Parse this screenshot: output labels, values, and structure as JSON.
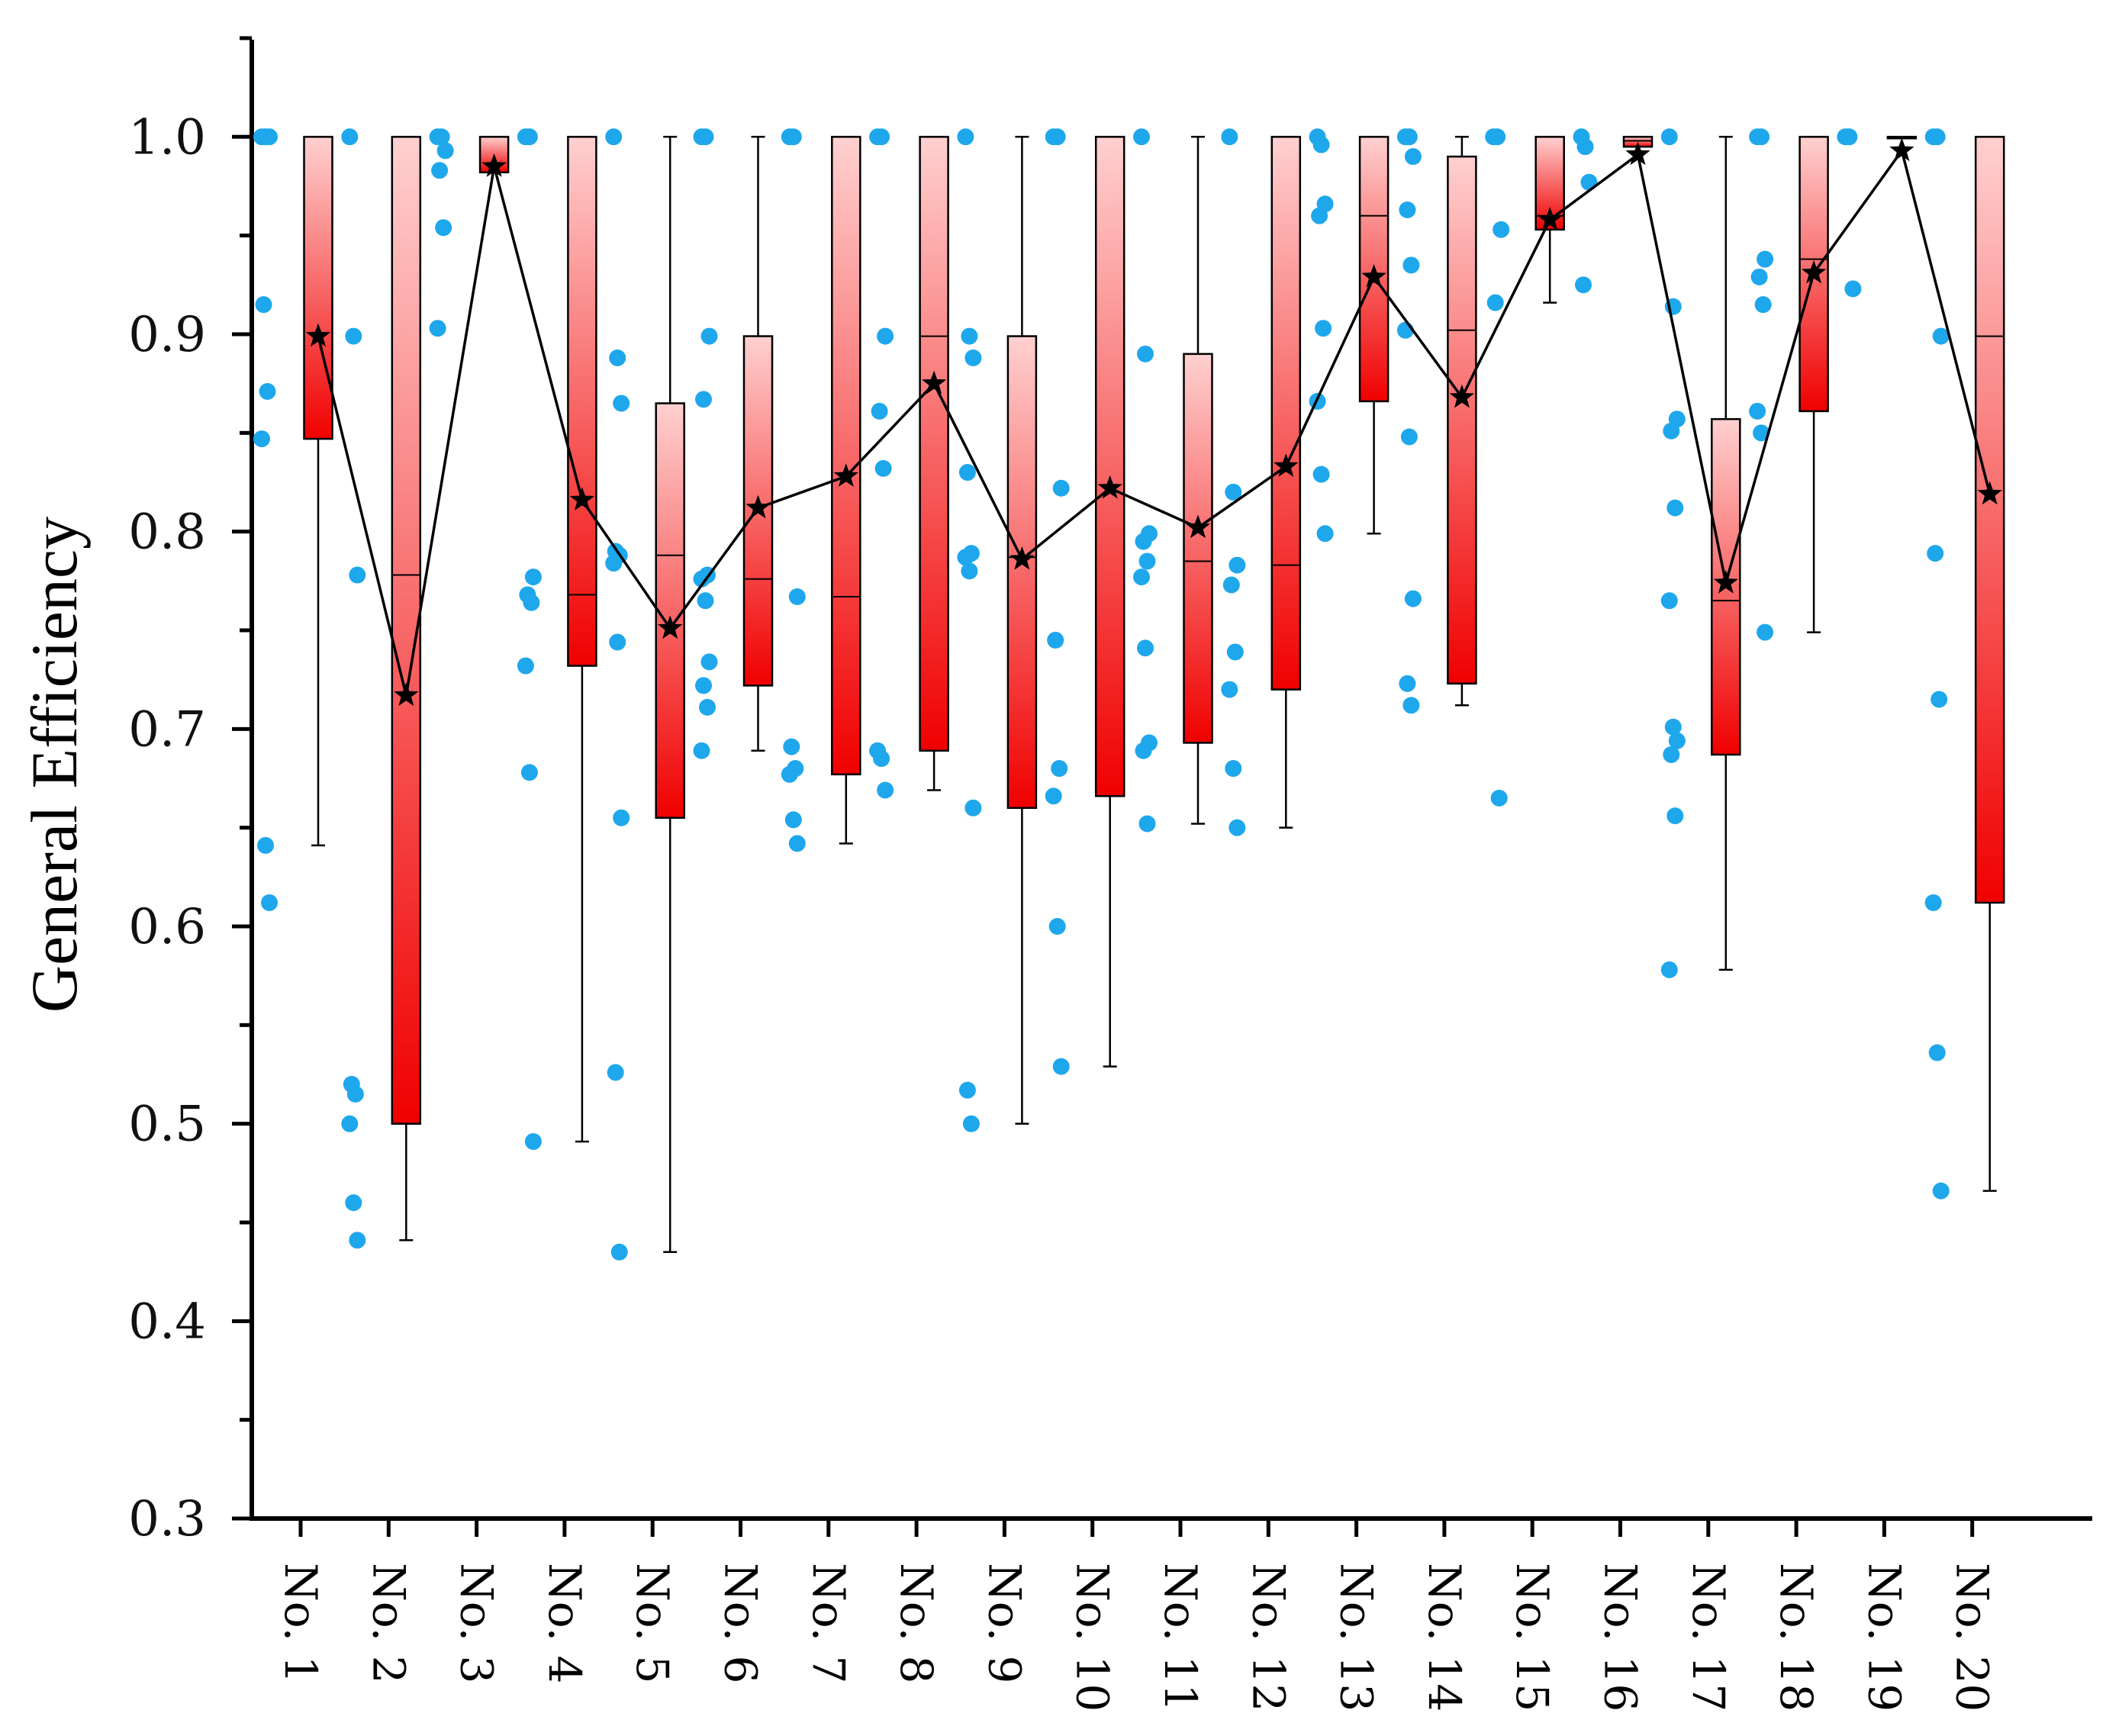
{
  "chart_data": {
    "type": "box",
    "title": "",
    "ylabel": "General Efficiency",
    "xlabel": "",
    "ylim": [
      0.3,
      1.05
    ],
    "yticks": [
      "0.3",
      "0.4",
      "0.5",
      "0.6",
      "0.7",
      "0.8",
      "0.9",
      "1.0"
    ],
    "categories": [
      "No. 1",
      "No. 2",
      "No. 3",
      "No. 4",
      "No. 5",
      "No. 6",
      "No. 7",
      "No. 8",
      "No. 9",
      "No. 10",
      "No. 11",
      "No. 12",
      "No. 13",
      "No. 14",
      "No. 15",
      "No. 16",
      "No. 17",
      "No. 18",
      "No. 19",
      "No. 20"
    ],
    "colors": {
      "box_top": "#ffd0d0",
      "box_bottom": "#f00000",
      "points": "#1fa7ec",
      "mean_line": "#000000"
    },
    "boxes": [
      {
        "q1": 0.847,
        "median": 1.0,
        "q3": 1.0,
        "whisker_low": 0.641,
        "whisker_high": 1.0,
        "mean": 0.899,
        "points": [
          1.0,
          1.0,
          1.0,
          0.915,
          0.871,
          0.847,
          0.641,
          0.612
        ]
      },
      {
        "q1": 0.5,
        "median": 0.778,
        "q3": 1.0,
        "whisker_low": 0.441,
        "whisker_high": 1.0,
        "mean": 0.717,
        "points": [
          1.0,
          0.899,
          0.778,
          0.52,
          0.515,
          0.5,
          0.46,
          0.441
        ]
      },
      {
        "q1": 0.982,
        "median": 1.0,
        "q3": 1.0,
        "whisker_low": 0.982,
        "whisker_high": 1.0,
        "mean": 0.985,
        "points": [
          1.0,
          1.0,
          0.993,
          0.983,
          0.954,
          0.903
        ]
      },
      {
        "q1": 0.732,
        "median": 0.768,
        "q3": 1.0,
        "whisker_low": 0.491,
        "whisker_high": 1.0,
        "mean": 0.816,
        "points": [
          1.0,
          1.0,
          0.777,
          0.768,
          0.764,
          0.732,
          0.678,
          0.491
        ]
      },
      {
        "q1": 0.655,
        "median": 0.788,
        "q3": 0.865,
        "whisker_low": 0.435,
        "whisker_high": 1.0,
        "mean": 0.751,
        "points": [
          1.0,
          0.888,
          0.865,
          0.79,
          0.788,
          0.784,
          0.744,
          0.655,
          0.526,
          0.435
        ]
      },
      {
        "q1": 0.722,
        "median": 0.776,
        "q3": 0.899,
        "whisker_low": 0.689,
        "whisker_high": 1.0,
        "mean": 0.812,
        "points": [
          1.0,
          1.0,
          0.899,
          0.867,
          0.778,
          0.776,
          0.765,
          0.734,
          0.722,
          0.711,
          0.689
        ]
      },
      {
        "q1": 0.677,
        "median": 0.767,
        "q3": 1.0,
        "whisker_low": 0.642,
        "whisker_high": 1.0,
        "mean": 0.828,
        "points": [
          1.0,
          1.0,
          0.767,
          0.691,
          0.68,
          0.677,
          0.654,
          0.642
        ]
      },
      {
        "q1": 0.689,
        "median": 0.899,
        "q3": 1.0,
        "whisker_low": 0.669,
        "whisker_high": 1.0,
        "mean": 0.875,
        "points": [
          1.0,
          1.0,
          0.899,
          0.861,
          0.832,
          0.689,
          0.685,
          0.669
        ]
      },
      {
        "q1": 0.66,
        "median": 0.787,
        "q3": 0.899,
        "whisker_low": 0.5,
        "whisker_high": 1.0,
        "mean": 0.786,
        "points": [
          1.0,
          0.899,
          0.888,
          0.83,
          0.789,
          0.787,
          0.78,
          0.66,
          0.517,
          0.5
        ]
      },
      {
        "q1": 0.666,
        "median": 1.0,
        "q3": 1.0,
        "whisker_low": 0.529,
        "whisker_high": 1.0,
        "mean": 0.822,
        "points": [
          1.0,
          1.0,
          0.822,
          0.745,
          0.68,
          0.666,
          0.6,
          0.529
        ]
      },
      {
        "q1": 0.693,
        "median": 0.785,
        "q3": 0.89,
        "whisker_low": 0.652,
        "whisker_high": 1.0,
        "mean": 0.802,
        "points": [
          1.0,
          0.89,
          0.799,
          0.795,
          0.785,
          0.777,
          0.741,
          0.693,
          0.689,
          0.652
        ]
      },
      {
        "q1": 0.72,
        "median": 0.783,
        "q3": 1.0,
        "whisker_low": 0.65,
        "whisker_high": 1.0,
        "mean": 0.833,
        "points": [
          1.0,
          0.82,
          0.783,
          0.773,
          0.739,
          0.72,
          0.68,
          0.65
        ]
      },
      {
        "q1": 0.866,
        "median": 0.96,
        "q3": 1.0,
        "whisker_low": 0.799,
        "whisker_high": 1.0,
        "mean": 0.929,
        "points": [
          1.0,
          0.996,
          0.966,
          0.96,
          0.903,
          0.866,
          0.829,
          0.799
        ]
      },
      {
        "q1": 0.723,
        "median": 0.902,
        "q3": 0.99,
        "whisker_low": 0.712,
        "whisker_high": 1.0,
        "mean": 0.868,
        "points": [
          1.0,
          1.0,
          0.99,
          0.963,
          0.935,
          0.902,
          0.848,
          0.766,
          0.723,
          0.712
        ]
      },
      {
        "q1": 0.953,
        "median": 0.96,
        "q3": 1.0,
        "whisker_low": 0.916,
        "whisker_high": 1.0,
        "mean": 0.958,
        "points": [
          1.0,
          1.0,
          0.953,
          0.916,
          0.665
        ]
      },
      {
        "q1": 0.995,
        "median": 0.998,
        "q3": 1.0,
        "whisker_low": 0.995,
        "whisker_high": 1.0,
        "mean": 0.991,
        "points": [
          1.0,
          0.995,
          0.977,
          0.925
        ]
      },
      {
        "q1": 0.687,
        "median": 0.765,
        "q3": 0.857,
        "whisker_low": 0.578,
        "whisker_high": 1.0,
        "mean": 0.774,
        "points": [
          1.0,
          0.914,
          0.857,
          0.851,
          0.812,
          0.765,
          0.701,
          0.694,
          0.687,
          0.656,
          0.578
        ]
      },
      {
        "q1": 0.861,
        "median": 0.938,
        "q3": 1.0,
        "whisker_low": 0.749,
        "whisker_high": 1.0,
        "mean": 0.931,
        "points": [
          1.0,
          1.0,
          0.938,
          0.929,
          0.915,
          0.861,
          0.85,
          0.749
        ]
      },
      {
        "q1": 1.0,
        "median": 1.0,
        "q3": 1.0,
        "whisker_low": 1.0,
        "whisker_high": 1.0,
        "mean": 0.993,
        "points": [
          1.0,
          1.0,
          0.923
        ]
      },
      {
        "q1": 0.612,
        "median": 0.899,
        "q3": 1.0,
        "whisker_low": 0.466,
        "whisker_high": 1.0,
        "mean": 0.819,
        "points": [
          1.0,
          1.0,
          0.899,
          0.789,
          0.715,
          0.612,
          0.536,
          0.466
        ]
      }
    ]
  }
}
